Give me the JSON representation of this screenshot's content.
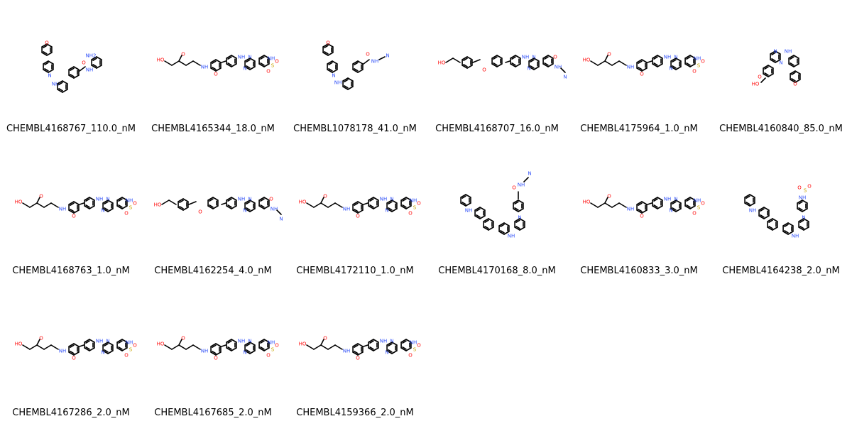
{
  "molecules": [
    {
      "label": "CHEMBL4168767_110.0_nM",
      "kind": "ortho_aryl"
    },
    {
      "label": "CHEMBL4165344_18.0_nM",
      "kind": "sulfonamide"
    },
    {
      "label": "CHEMBL1078178_41.0_nM",
      "kind": "nitrile_morph"
    },
    {
      "label": "CHEMBL4168707_16.0_nM",
      "kind": "nitrile_long"
    },
    {
      "label": "CHEMBL4175964_1.0_nM",
      "kind": "sulfonamide"
    },
    {
      "label": "CHEMBL4160840_85.0_nM",
      "kind": "morph_hydroxamate"
    },
    {
      "label": "CHEMBL4168763_1.0_nM",
      "kind": "sulfonamide"
    },
    {
      "label": "CHEMBL4162254_4.0_nM",
      "kind": "nitrile_long"
    },
    {
      "label": "CHEMBL4172110_1.0_nM",
      "kind": "sulfonamide"
    },
    {
      "label": "CHEMBL4170168_8.0_nM",
      "kind": "ortho_nitrile"
    },
    {
      "label": "CHEMBL4160833_3.0_nM",
      "kind": "sulfonamide"
    },
    {
      "label": "CHEMBL4164238_2.0_nM",
      "kind": "ortho_sulfonamide"
    },
    {
      "label": "CHEMBL4167286_2.0_nM",
      "kind": "sulfonamide"
    },
    {
      "label": "CHEMBL4167685_2.0_nM",
      "kind": "sulfonamide"
    },
    {
      "label": "CHEMBL4159366_2.0_nM",
      "kind": "sulfonamide"
    }
  ],
  "atoms": {
    "O": "O",
    "N": "N",
    "NH": "NH",
    "HO": "HO",
    "S": "S",
    "NH2": "NH2"
  },
  "colors": {
    "bond": "#000000",
    "oxygen": "#ff0d0d",
    "nitrogen": "#3050f8",
    "sulfur": "#c8a400"
  }
}
